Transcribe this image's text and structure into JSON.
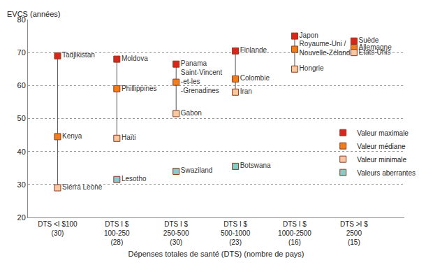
{
  "chart_data": {
    "type": "dot",
    "y_label": "EVCS (années)",
    "x_label": "Dépenses totales de santé (DTS) (nombre de pays)",
    "categories": [
      "DTS <I $100\n(30)",
      "DTS I $\n100-250\n(28)",
      "DTS I $\n250-500\n(30)",
      "DTS I $\n500-1000\n(23)",
      "DTS I $\n1000-2500\n(16)",
      "DTS >I $\n2500\n(15)"
    ],
    "ylim": [
      20,
      80
    ],
    "yticks": [
      20,
      30,
      40,
      50,
      60,
      70,
      80
    ],
    "grid": true,
    "legend": "right",
    "marker": "square",
    "series": [
      {
        "name": "Valeur maximale",
        "color": "#d9261c",
        "values": [
          69,
          68,
          66.5,
          70.5,
          75,
          73.5
        ],
        "labels": [
          "Tadjikistan",
          "Moldova",
          "Panama",
          "Finlande",
          "Japon",
          "Suède"
        ]
      },
      {
        "name": "Valeur médiane",
        "color": "#f07d1a",
        "values": [
          44.5,
          59,
          61,
          62,
          71,
          71.5
        ],
        "labels": [
          "Kenya",
          "Phillippines",
          "Saint-Vincent\n-et-les\n-Grenadines",
          "Colombie",
          "Royaume-Uni /\nNouvelle-Zélande",
          "Allemagne"
        ]
      },
      {
        "name": "Valeur minimale",
        "color": "#f8c8a0",
        "values": [
          29,
          44,
          51.5,
          58,
          65,
          70
        ],
        "labels": [
          "Sierra Leone",
          "Haïti",
          "Gabon",
          "Iran",
          "Hongrie",
          "Etats-Unis"
        ]
      },
      {
        "name": "Valeurs aberrantes",
        "color": "#86cccb",
        "values": [
          null,
          31.5,
          34,
          35.5,
          null,
          null
        ],
        "labels": [
          null,
          "Lesotho",
          "Swaziland",
          "Botswana",
          null,
          null
        ]
      }
    ]
  }
}
